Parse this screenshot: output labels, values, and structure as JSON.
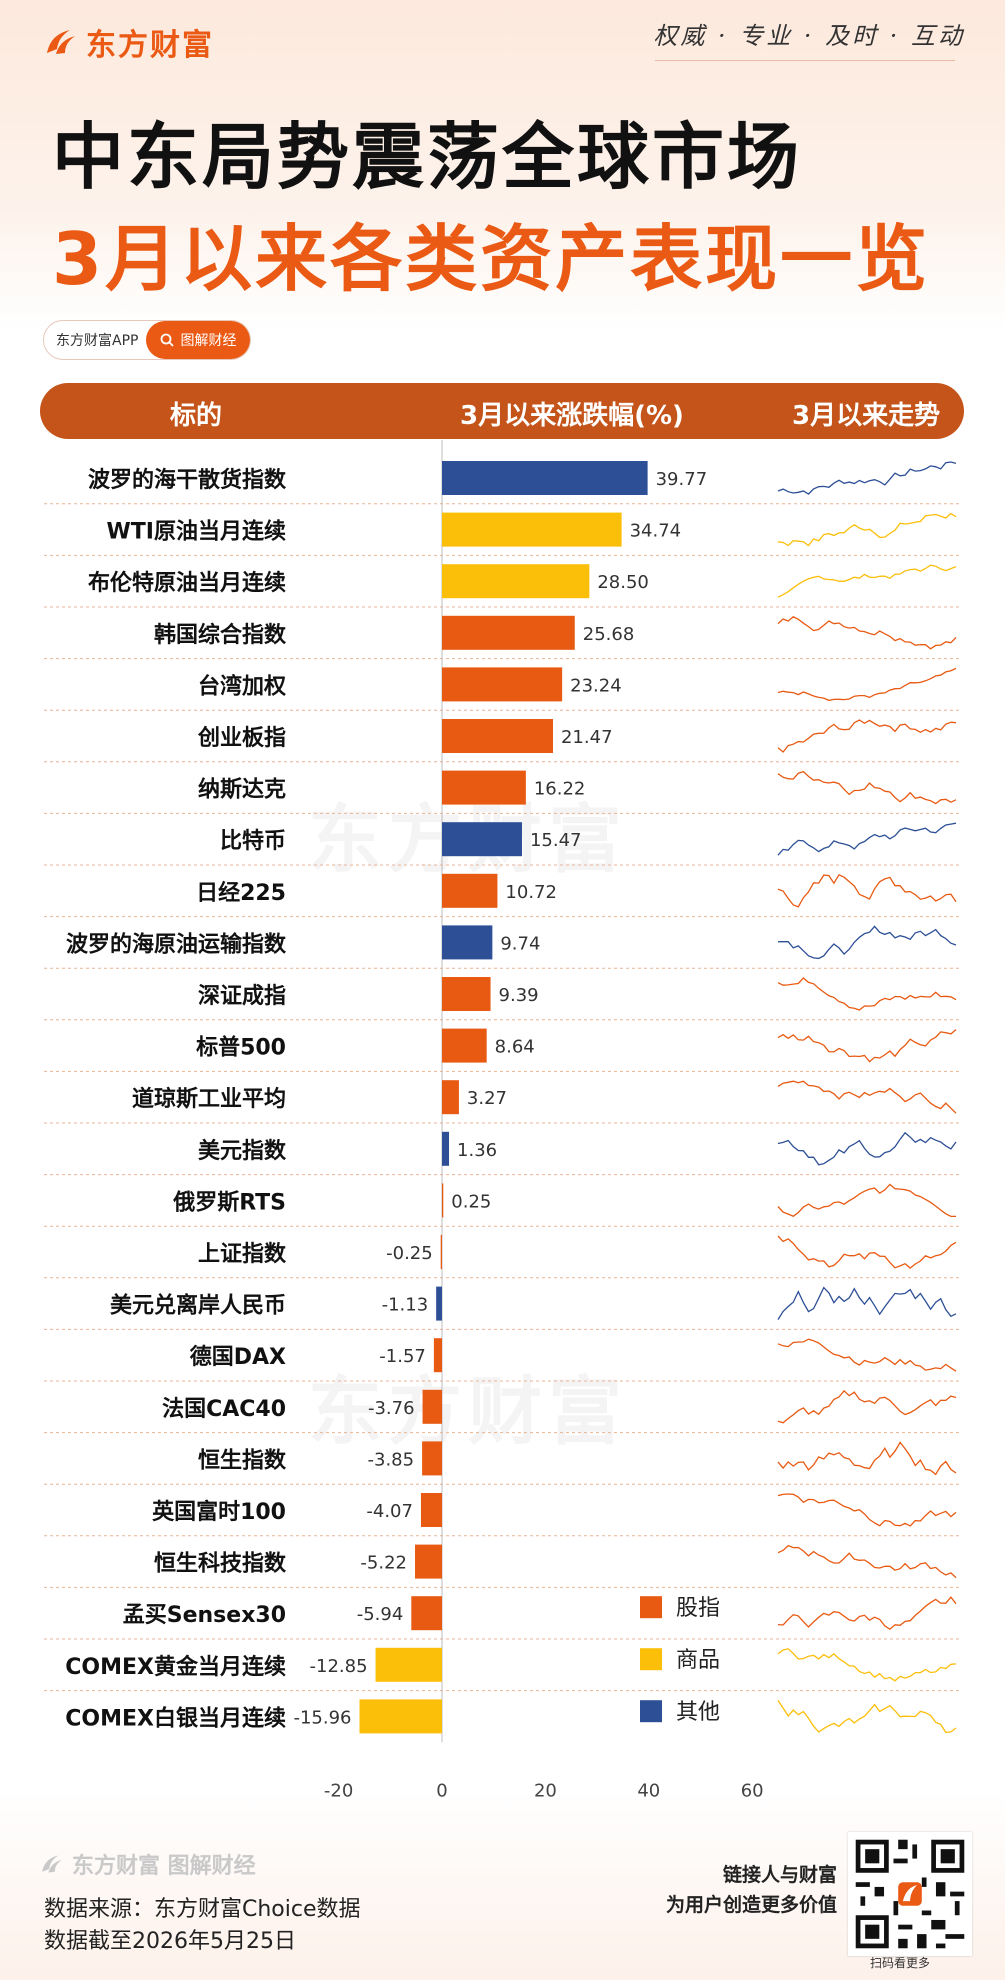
{
  "brand": {
    "name": "东方财富",
    "color": "#ea5a14"
  },
  "header": {
    "slogan": "权威 · 专业 · 及时 · 互动",
    "title_line1": "中东局势震荡全球市场",
    "title_line2": "3月以来各类资产表现一览"
  },
  "app_pill": {
    "app": "东方财富APP",
    "tag": "图解财经"
  },
  "table_header": {
    "col1": "标的",
    "col2": "3月以来涨跌幅(%)",
    "col3": "3月以来走势"
  },
  "watermark": "东方财富",
  "chart_data": {
    "type": "bar",
    "orientation": "horizontal",
    "xlim": [
      -20,
      60
    ],
    "x_ticks": [
      -20,
      0,
      20,
      40,
      60
    ],
    "colors": {
      "股指": "#e85a12",
      "商品": "#fbbf0a",
      "其他": "#2d4f96"
    },
    "legend": [
      {
        "name": "股指"
      },
      {
        "name": "商品"
      },
      {
        "name": "其他"
      }
    ],
    "legend_position": "bottom-right",
    "rows": [
      {
        "name": "波罗的海干散货指数",
        "value": 39.77,
        "group": "其他"
      },
      {
        "name": "WTI原油当月连续",
        "value": 34.74,
        "group": "商品"
      },
      {
        "name": "布伦特原油当月连续",
        "value": 28.5,
        "group": "商品"
      },
      {
        "name": "韩国综合指数",
        "value": 25.68,
        "group": "股指"
      },
      {
        "name": "台湾加权",
        "value": 23.24,
        "group": "股指"
      },
      {
        "name": "创业板指",
        "value": 21.47,
        "group": "股指"
      },
      {
        "name": "纳斯达克",
        "value": 16.22,
        "group": "股指"
      },
      {
        "name": "比特币",
        "value": 15.47,
        "group": "其他"
      },
      {
        "name": "日经225",
        "value": 10.72,
        "group": "股指"
      },
      {
        "name": "波罗的海原油运输指数",
        "value": 9.74,
        "group": "其他"
      },
      {
        "name": "深证成指",
        "value": 9.39,
        "group": "股指"
      },
      {
        "name": "标普500",
        "value": 8.64,
        "group": "股指"
      },
      {
        "name": "道琼斯工业平均",
        "value": 3.27,
        "group": "股指"
      },
      {
        "name": "美元指数",
        "value": 1.36,
        "group": "其他"
      },
      {
        "name": "俄罗斯RTS",
        "value": 0.25,
        "group": "股指"
      },
      {
        "name": "上证指数",
        "value": -0.25,
        "group": "股指"
      },
      {
        "name": "美元兑离岸人民币",
        "value": -1.13,
        "group": "其他"
      },
      {
        "name": "德国DAX",
        "value": -1.57,
        "group": "股指"
      },
      {
        "name": "法国CAC40",
        "value": -3.76,
        "group": "股指"
      },
      {
        "name": "恒生指数",
        "value": -3.85,
        "group": "股指"
      },
      {
        "name": "英国富时100",
        "value": -4.07,
        "group": "股指"
      },
      {
        "name": "恒生科技指数",
        "value": -5.22,
        "group": "股指"
      },
      {
        "name": "孟买Sensex30",
        "value": -5.94,
        "group": "股指"
      },
      {
        "name": "COMEX黄金当月连续",
        "value": -12.85,
        "group": "商品"
      },
      {
        "name": "COMEX白银当月连续",
        "value": -15.96,
        "group": "商品"
      }
    ]
  },
  "footer": {
    "brand_tag": "东方财富 图解财经",
    "source": "数据来源：东方财富Choice数据",
    "date": "数据截至2026年5月25日",
    "slogan_line1": "链接人与财富",
    "slogan_line2": "为用户创造更多价值",
    "qr_note": "扫码看更多"
  }
}
